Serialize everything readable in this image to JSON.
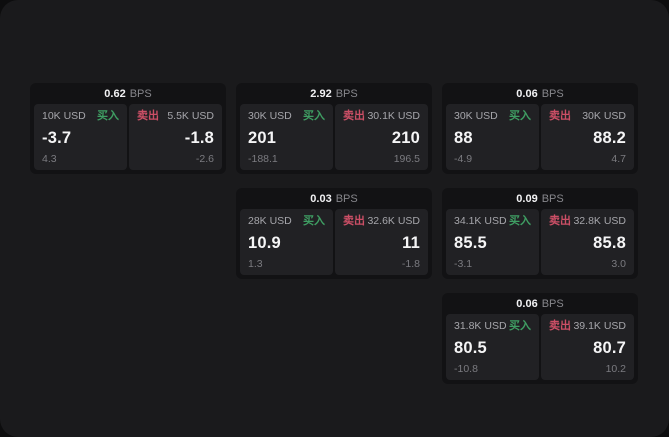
{
  "labels": {
    "bps_unit": "BPS",
    "buy": "买入",
    "sell": "卖出"
  },
  "colors": {
    "buy": "#3f9e63",
    "sell": "#cb five"
  },
  "theme": {
    "buy_color": "#3f9e63",
    "sell_color": "#cc4f66",
    "panel_bg": "#212124",
    "card_bg": "#121214",
    "screen_bg": "#1a1a1c"
  },
  "cards": [
    {
      "row": 1,
      "col": 1,
      "bps": "0.62",
      "buy": {
        "size": "10K USD",
        "price": "-3.7",
        "delta": "4.3"
      },
      "sell": {
        "size": "5.5K USD",
        "price": "-1.8",
        "delta": "-2.6"
      }
    },
    {
      "row": 1,
      "col": 2,
      "bps": "2.92",
      "buy": {
        "size": "30K USD",
        "price": "201",
        "delta": "-188.1"
      },
      "sell": {
        "size": "30.1K USD",
        "price": "210",
        "delta": "196.5"
      }
    },
    {
      "row": 1,
      "col": 3,
      "bps": "0.06",
      "buy": {
        "size": "30K USD",
        "price": "88",
        "delta": "-4.9"
      },
      "sell": {
        "size": "30K USD",
        "price": "88.2",
        "delta": "4.7"
      }
    },
    {
      "row": 2,
      "col": 2,
      "bps": "0.03",
      "buy": {
        "size": "28K USD",
        "price": "10.9",
        "delta": "1.3"
      },
      "sell": {
        "size": "32.6K USD",
        "price": "11",
        "delta": "-1.8"
      }
    },
    {
      "row": 2,
      "col": 3,
      "bps": "0.09",
      "buy": {
        "size": "34.1K USD",
        "price": "85.5",
        "delta": "-3.1"
      },
      "sell": {
        "size": "32.8K USD",
        "price": "85.8",
        "delta": "3.0"
      }
    },
    {
      "row": 3,
      "col": 3,
      "bps": "0.06",
      "buy": {
        "size": "31.8K USD",
        "price": "80.5",
        "delta": "-10.8"
      },
      "sell": {
        "size": "39.1K USD",
        "price": "80.7",
        "delta": "10.2"
      }
    }
  ]
}
